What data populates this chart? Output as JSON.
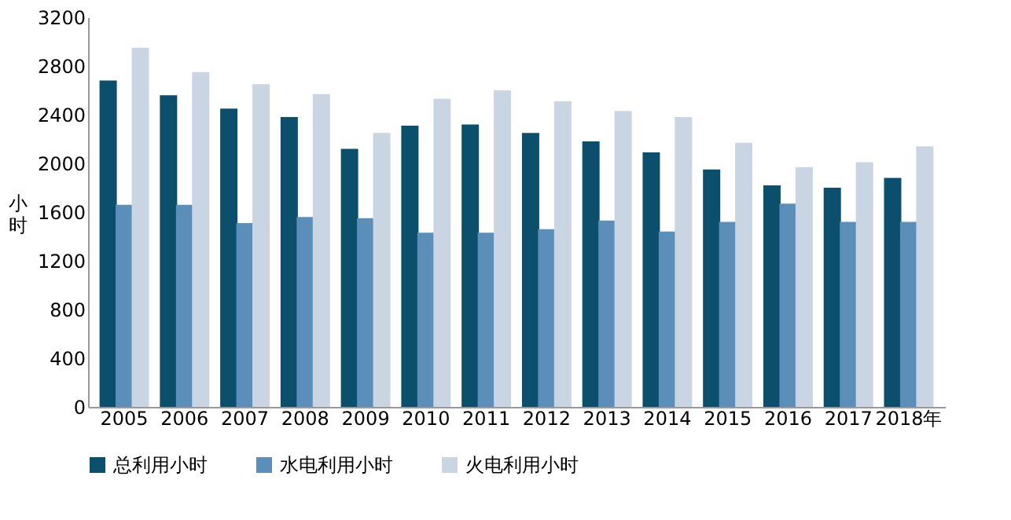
{
  "chart_data": {
    "type": "bar",
    "ylabel": "小时",
    "categories": [
      "2005",
      "2006",
      "2007",
      "2008",
      "2009",
      "2010",
      "2011",
      "2012",
      "2013",
      "2014",
      "2015",
      "2016",
      "2017",
      "2018年"
    ],
    "series": [
      {
        "name": "总利用小时",
        "color": "#0b4f6c",
        "values": [
          2680,
          2560,
          2450,
          2380,
          2120,
          2310,
          2320,
          2250,
          2180,
          2090,
          1950,
          1820,
          1800,
          1880
        ]
      },
      {
        "name": "水电利用小时",
        "color": "#5b8fb9",
        "values": [
          1660,
          1660,
          1510,
          1560,
          1550,
          1430,
          1430,
          1460,
          1530,
          1440,
          1520,
          1670,
          1520,
          1520
        ]
      },
      {
        "name": "火电利用小时",
        "color": "#c9d5e3",
        "values": [
          2950,
          2750,
          2650,
          2570,
          2250,
          2530,
          2600,
          2510,
          2430,
          2380,
          2170,
          1970,
          2010,
          2140
        ]
      }
    ],
    "ylim": [
      0,
      3200
    ],
    "yticks": [
      0,
      400,
      800,
      1200,
      1600,
      2000,
      2400,
      2800,
      3200
    ],
    "grid": false,
    "legend": "bottom"
  }
}
